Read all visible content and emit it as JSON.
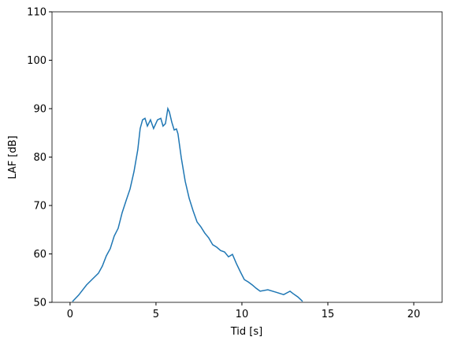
{
  "chart_data": {
    "type": "line",
    "xlabel": "Tid [s]",
    "ylabel": "LAF [dB]",
    "x": [
      0.14,
      0.5,
      0.96,
      1.33,
      1.65,
      1.88,
      2.11,
      2.34,
      2.57,
      2.8,
      3.03,
      3.26,
      3.49,
      3.72,
      3.94,
      4.08,
      4.22,
      4.36,
      4.5,
      4.68,
      4.86,
      5.09,
      5.28,
      5.41,
      5.55,
      5.69,
      5.78,
      5.92,
      6.06,
      6.19,
      6.28,
      6.47,
      6.7,
      6.93,
      7.16,
      7.39,
      7.61,
      7.84,
      8.07,
      8.3,
      8.53,
      8.76,
      8.99,
      9.22,
      9.45,
      9.68,
      9.91,
      10.14,
      10.37,
      10.6,
      10.83,
      11.06,
      11.51,
      11.97,
      12.43,
      12.8,
      12.98,
      13.26,
      13.53
    ],
    "series": [
      {
        "color": "#1f77b4",
        "values": [
          50.16,
          51.5,
          53.6,
          54.9,
          56.0,
          57.5,
          59.6,
          61.1,
          63.7,
          65.3,
          68.5,
          71.0,
          73.4,
          77.0,
          81.5,
          85.9,
          87.7,
          88.0,
          86.4,
          87.7,
          85.9,
          87.7,
          88.0,
          86.4,
          86.9,
          90.0,
          89.3,
          87.2,
          85.6,
          85.8,
          84.8,
          79.9,
          75.0,
          71.5,
          68.9,
          66.6,
          65.6,
          64.3,
          63.3,
          61.9,
          61.4,
          60.7,
          60.4,
          59.4,
          59.9,
          58.0,
          56.3,
          54.7,
          54.2,
          53.6,
          52.9,
          52.3,
          52.6,
          52.1,
          51.6,
          52.3,
          51.8,
          51.1,
          50.2
        ]
      }
    ],
    "xlim": [
      -1.05,
      21.65
    ],
    "xticks": [
      0,
      5,
      10,
      15,
      20
    ],
    "ylim": [
      50,
      110
    ],
    "yticks": [
      50,
      60,
      70,
      80,
      90,
      100,
      110
    ],
    "grid": false
  }
}
